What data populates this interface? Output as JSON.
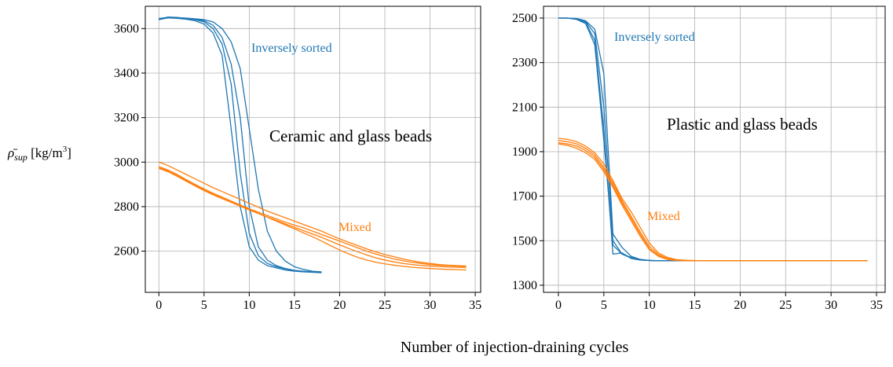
{
  "chart_data": [
    {
      "type": "line",
      "xlim": [
        -1.5,
        35.6
      ],
      "ylim": [
        2415,
        3700
      ],
      "xticks": [
        0,
        5,
        10,
        15,
        20,
        25,
        30,
        35
      ],
      "yticks": [
        2600,
        2800,
        3000,
        3200,
        3400,
        3600
      ],
      "grid": true,
      "x": [
        0,
        1,
        2,
        3,
        4,
        5,
        6,
        7,
        8,
        9,
        10,
        11,
        12,
        13,
        14,
        15,
        16,
        17,
        18,
        19,
        20,
        21,
        22,
        23,
        24,
        25,
        26,
        27,
        28,
        29,
        30,
        31,
        32,
        33,
        34
      ],
      "annotations": [
        {
          "text": "Inversely sorted",
          "color": "#1f77b4"
        },
        {
          "text": "Ceramic and glass beads",
          "color": "#000000"
        },
        {
          "text": "Mixed",
          "color": "#ff7f0e"
        }
      ],
      "series": [
        {
          "color": "#1f77b4",
          "values": [
            3640,
            3648,
            3646,
            3642,
            3635,
            3620,
            3580,
            3480,
            3150,
            2800,
            2620,
            2560,
            2535,
            2525,
            2515,
            2510,
            2507,
            2505,
            2503,
            null,
            null,
            null,
            null,
            null,
            null,
            null,
            null,
            null,
            null,
            null,
            null,
            null,
            null,
            null,
            null
          ]
        },
        {
          "color": "#1f77b4",
          "values": [
            3645,
            3650,
            3648,
            3645,
            3640,
            3630,
            3600,
            3530,
            3350,
            2950,
            2680,
            2580,
            2545,
            2530,
            2520,
            2512,
            2508,
            2506,
            2505,
            null,
            null,
            null,
            null,
            null,
            null,
            null,
            null,
            null,
            null,
            null,
            null,
            null,
            null,
            null,
            null
          ]
        },
        {
          "color": "#1f77b4",
          "values": [
            3642,
            3652,
            3650,
            3646,
            3642,
            3635,
            3615,
            3560,
            3440,
            3200,
            2800,
            2620,
            2560,
            2535,
            2522,
            2514,
            2510,
            2507,
            2505,
            null,
            null,
            null,
            null,
            null,
            null,
            null,
            null,
            null,
            null,
            null,
            null,
            null,
            null,
            null,
            null
          ]
        },
        {
          "color": "#1f77b4",
          "values": [
            3640,
            3650,
            3649,
            3647,
            3644,
            3640,
            3630,
            3600,
            3540,
            3420,
            3150,
            2880,
            2690,
            2600,
            2555,
            2530,
            2518,
            2510,
            2507,
            null,
            null,
            null,
            null,
            null,
            null,
            null,
            null,
            null,
            null,
            null,
            null,
            null,
            null,
            null,
            null
          ]
        },
        {
          "color": "#ff7f0e",
          "values": [
            3000,
            2985,
            2965,
            2945,
            2925,
            2905,
            2885,
            2868,
            2850,
            2833,
            2815,
            2798,
            2780,
            2765,
            2750,
            2735,
            2720,
            2705,
            2690,
            2672,
            2655,
            2640,
            2625,
            2610,
            2597,
            2585,
            2575,
            2565,
            2557,
            2550,
            2545,
            2540,
            2537,
            2535,
            2533
          ]
        },
        {
          "color": "#ff7f0e",
          "values": [
            2980,
            2965,
            2945,
            2922,
            2900,
            2880,
            2860,
            2843,
            2825,
            2808,
            2790,
            2775,
            2760,
            2745,
            2730,
            2717,
            2705,
            2690,
            2675,
            2660,
            2645,
            2630,
            2615,
            2600,
            2587,
            2575,
            2565,
            2557,
            2550,
            2545,
            2540,
            2537,
            2535,
            2533,
            2531
          ]
        },
        {
          "color": "#ff7f0e",
          "values": [
            2975,
            2960,
            2940,
            2918,
            2896,
            2875,
            2856,
            2838,
            2820,
            2803,
            2787,
            2770,
            2752,
            2735,
            2717,
            2700,
            2682,
            2665,
            2645,
            2625,
            2605,
            2588,
            2572,
            2560,
            2550,
            2543,
            2537,
            2532,
            2528,
            2525,
            2522,
            2520,
            2518,
            2517,
            2516
          ]
        },
        {
          "color": "#ff7f0e",
          "values": [
            2972,
            2957,
            2937,
            2915,
            2893,
            2872,
            2853,
            2836,
            2819,
            2802,
            2785,
            2769,
            2753,
            2738,
            2722,
            2707,
            2692,
            2677,
            2662,
            2645,
            2628,
            2612,
            2597,
            2583,
            2570,
            2560,
            2552,
            2545,
            2540,
            2536,
            2533,
            2531,
            2529,
            2528,
            2527
          ]
        }
      ]
    },
    {
      "type": "line",
      "xlim": [
        -1.64,
        35.95
      ],
      "ylim": [
        1268,
        2553
      ],
      "xticks": [
        0,
        5,
        10,
        15,
        20,
        25,
        30,
        35
      ],
      "yticks": [
        1300,
        1500,
        1700,
        1900,
        2100,
        2300,
        2500
      ],
      "grid": true,
      "x": [
        0,
        1,
        2,
        3,
        4,
        5,
        6,
        7,
        8,
        9,
        10,
        11,
        12,
        13,
        14,
        15,
        16,
        17,
        18,
        19,
        20,
        21,
        22,
        23,
        24,
        25,
        26,
        27,
        28,
        29,
        30,
        31,
        32,
        33,
        34
      ],
      "annotations": [
        {
          "text": "Inversely sorted",
          "color": "#1f77b4"
        },
        {
          "text": "Plastic and glass beads",
          "color": "#000000"
        },
        {
          "text": "Mixed",
          "color": "#ff7f0e"
        }
      ],
      "series": [
        {
          "color": "#1f77b4",
          "values": [
            2500,
            2500,
            2495,
            2480,
            2400,
            2000,
            1440,
            1445,
            1420,
            1413,
            1411,
            1410,
            1410,
            1410,
            1410,
            1410,
            1410,
            1410,
            1410,
            null,
            null,
            null,
            null,
            null,
            null,
            null,
            null,
            null,
            null,
            null,
            null,
            null,
            null,
            null,
            null
          ]
        },
        {
          "color": "#1f77b4",
          "values": [
            2500,
            2500,
            2497,
            2485,
            2430,
            2100,
            1500,
            1440,
            1425,
            1415,
            1411,
            1410,
            1410,
            1410,
            1410,
            1410,
            1410,
            1410,
            1410,
            null,
            null,
            null,
            null,
            null,
            null,
            null,
            null,
            null,
            null,
            null,
            null,
            null,
            null,
            null,
            null
          ]
        },
        {
          "color": "#1f77b4",
          "values": [
            2500,
            2500,
            2498,
            2488,
            2450,
            2250,
            1530,
            1470,
            1430,
            1416,
            1412,
            1410,
            1410,
            1410,
            1410,
            1410,
            1410,
            1410,
            1410,
            null,
            null,
            null,
            null,
            null,
            null,
            null,
            null,
            null,
            null,
            null,
            null,
            null,
            null,
            null,
            null
          ]
        },
        {
          "color": "#1f77b4",
          "values": [
            2500,
            2500,
            2494,
            2475,
            2380,
            1950,
            1480,
            1440,
            1422,
            1414,
            1411,
            1410,
            1410,
            1410,
            1410,
            1410,
            1410,
            1410,
            1410,
            null,
            null,
            null,
            null,
            null,
            null,
            null,
            null,
            null,
            null,
            null,
            null,
            null,
            null,
            null,
            null
          ]
        },
        {
          "color": "#ff7f0e",
          "values": [
            1960,
            1955,
            1945,
            1925,
            1895,
            1845,
            1770,
            1690,
            1630,
            1560,
            1490,
            1445,
            1425,
            1415,
            1412,
            1411,
            1410,
            1410,
            1410,
            1410,
            1410,
            1410,
            1410,
            1410,
            1410,
            1410,
            1410,
            1410,
            1410,
            1410,
            1410,
            1410,
            1410,
            1410,
            1410
          ]
        },
        {
          "color": "#ff7f0e",
          "values": [
            1950,
            1945,
            1935,
            1915,
            1885,
            1830,
            1760,
            1680,
            1610,
            1540,
            1475,
            1438,
            1420,
            1413,
            1411,
            1410,
            1410,
            1410,
            1410,
            1410,
            1410,
            1410,
            1410,
            1410,
            1410,
            1410,
            1410,
            1410,
            1410,
            1410,
            1410,
            1410,
            1410,
            1410,
            1410
          ]
        },
        {
          "color": "#ff7f0e",
          "values": [
            1940,
            1935,
            1925,
            1905,
            1875,
            1820,
            1750,
            1670,
            1600,
            1530,
            1465,
            1432,
            1418,
            1412,
            1410,
            1410,
            1410,
            1410,
            1410,
            1410,
            1410,
            1410,
            1410,
            1410,
            1410,
            1410,
            1410,
            1410,
            1410,
            1410,
            1410,
            1410,
            1410,
            1410,
            1410
          ]
        },
        {
          "color": "#ff7f0e",
          "values": [
            1935,
            1928,
            1915,
            1895,
            1865,
            1810,
            1740,
            1660,
            1590,
            1520,
            1460,
            1430,
            1416,
            1411,
            1410,
            1410,
            1410,
            1410,
            1410,
            1410,
            1410,
            1410,
            1410,
            1410,
            1410,
            1410,
            1410,
            1410,
            1410,
            1410,
            1410,
            1410,
            1410,
            1410,
            1410
          ]
        }
      ]
    }
  ],
  "xlabel": "Number of injection-draining cycles",
  "ylabel": {
    "symbol": "ρ̄",
    "subscript": "sup",
    "unit": " [kg/m",
    "superscript": "3",
    "close": "]"
  }
}
